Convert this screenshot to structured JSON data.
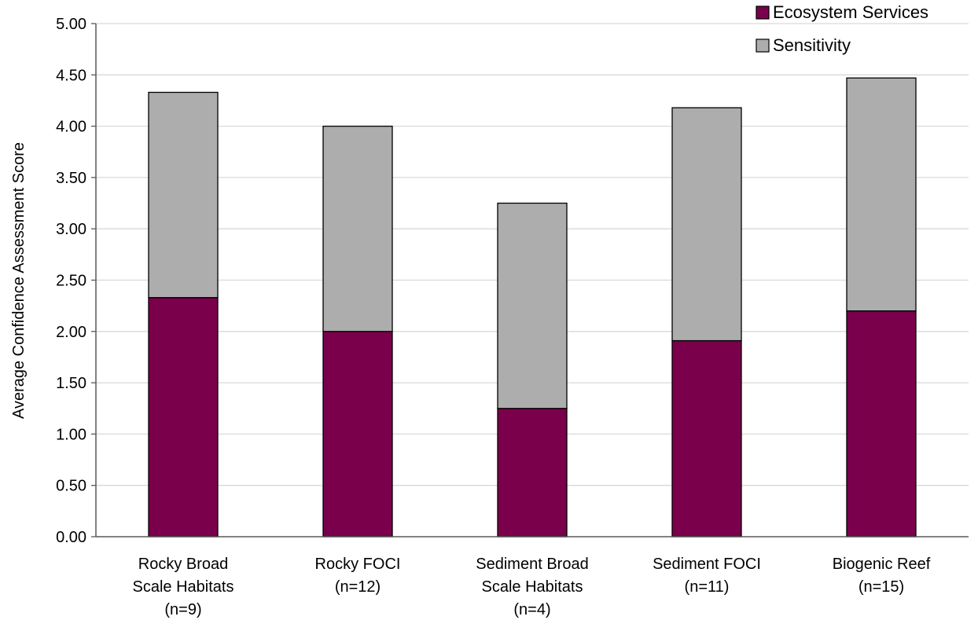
{
  "chart_data": {
    "type": "bar",
    "stacked": true,
    "title": "",
    "xlabel": "",
    "ylabel": "Average Confidence Assessment Score",
    "ylim": [
      0,
      5
    ],
    "yticks": [
      "0.00",
      "0.50",
      "1.00",
      "1.50",
      "2.00",
      "2.50",
      "3.00",
      "3.50",
      "4.00",
      "4.50",
      "5.00"
    ],
    "grid": "horizontal",
    "legend_position": "top-right",
    "categories": [
      [
        "Rocky Broad",
        "Scale Habitats",
        "(n=9)"
      ],
      [
        "Rocky FOCI",
        "(n=12)"
      ],
      [
        "Sediment Broad",
        "Scale Habitats",
        "(n=4)"
      ],
      [
        "Sediment FOCI",
        "(n=11)"
      ],
      [
        "Biogenic Reef",
        "(n=15)"
      ]
    ],
    "series": [
      {
        "name": "Ecosystem Services",
        "color": "#7a004b",
        "values": [
          2.33,
          2.0,
          1.25,
          1.91,
          2.2
        ]
      },
      {
        "name": "Sensitivity",
        "color": "#adadad",
        "values": [
          2.0,
          2.0,
          2.0,
          2.27,
          2.27
        ]
      }
    ]
  }
}
